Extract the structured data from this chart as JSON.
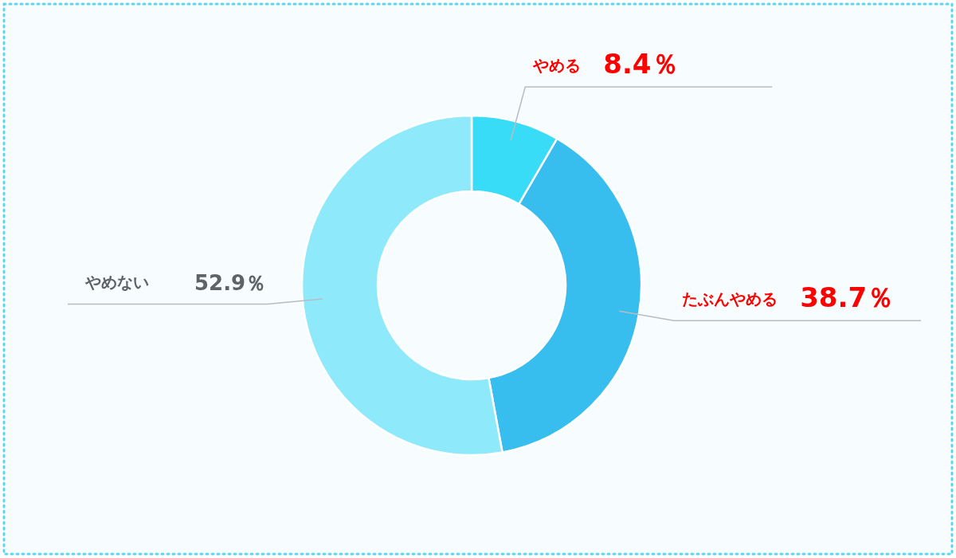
{
  "chart_data": {
    "type": "donut",
    "categories": [
      "やめる",
      "たぶんやめる",
      "やめない"
    ],
    "values": [
      8.4,
      38.7,
      52.9
    ],
    "colors": [
      "#38dcf7",
      "#38bdef",
      "#8eeafb"
    ],
    "value_labels": [
      "8.4％",
      "38.7％",
      "52.9％"
    ]
  }
}
